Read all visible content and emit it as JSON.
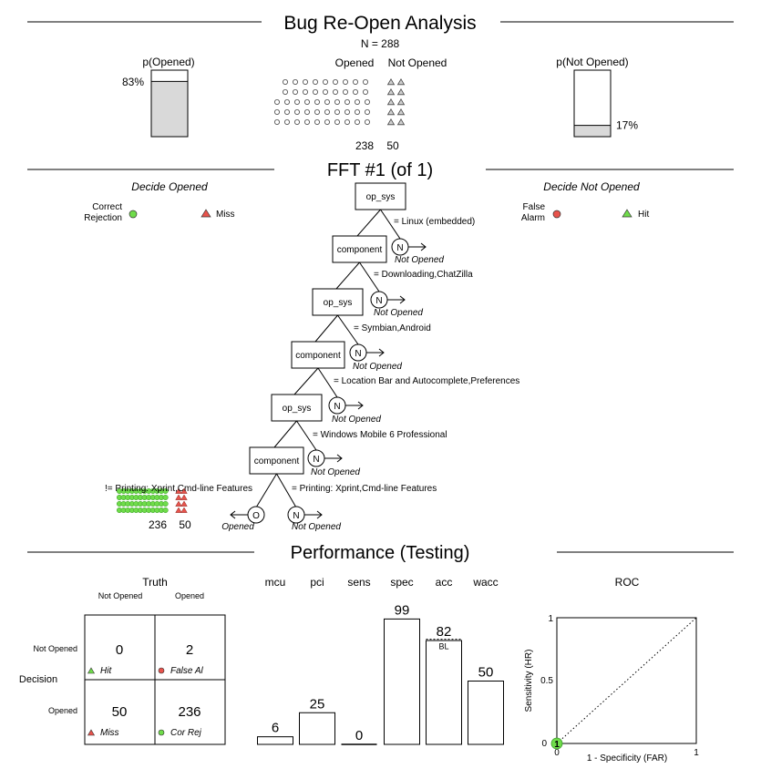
{
  "header": {
    "title": "Bug Re-Open Analysis",
    "n_label": "N = 288",
    "p_left_label": "p(Opened)",
    "p_left_value": "83%",
    "p_left_fraction": 0.83,
    "p_right_label": "p(Not Opened)",
    "p_right_value": "17%",
    "p_right_fraction": 0.17,
    "col_opened": "Opened",
    "col_not_opened": "Not Opened",
    "count_opened": "238",
    "count_not_opened": "50"
  },
  "fft": {
    "title": "FFT #1 (of 1)",
    "left_heading": "Decide Opened",
    "right_heading": "Decide Not Opened",
    "legend": {
      "correct_rejection_1": "Correct",
      "correct_rejection_2": "Rejection",
      "miss": "Miss",
      "false_alarm_1": "False",
      "false_alarm_2": "Alarm",
      "hit": "Hit"
    },
    "nodes": [
      {
        "cue": "op_sys",
        "condition": "= Linux (embedded)",
        "exit_letter": "N",
        "exit_label": "Not Opened"
      },
      {
        "cue": "component",
        "condition": "= Downloading,ChatZilla",
        "exit_letter": "N",
        "exit_label": "Not Opened"
      },
      {
        "cue": "op_sys",
        "condition": "= Symbian,Android",
        "exit_letter": "N",
        "exit_label": "Not Opened"
      },
      {
        "cue": "component",
        "condition": "= Location Bar and Autocomplete,Preferences",
        "exit_letter": "N",
        "exit_label": "Not Opened"
      },
      {
        "cue": "op_sys",
        "condition": "= Windows Mobile 6 Professional",
        "exit_letter": "N",
        "exit_label": "Not Opened"
      },
      {
        "cue": "component",
        "condition": "= Printing: Xprint,Cmd-line Features",
        "exit_letter": "N",
        "exit_label": "Not Opened"
      }
    ],
    "final_left_condition": "!= Printing: Xprint,Cmd-line Features",
    "final_left_letter": "O",
    "final_left_label": "Opened",
    "final_left_count_cr": "236",
    "final_left_count_miss": "50"
  },
  "performance": {
    "title": "Performance (Testing)",
    "truth_label": "Truth",
    "truth_col_1": "Not Opened",
    "truth_col_2": "Opened",
    "decision_label": "Decision",
    "row_1": "Not Opened",
    "row_2": "Opened",
    "cells": {
      "hit": {
        "value": "0",
        "label": "Hit"
      },
      "false_alarm": {
        "value": "2",
        "label": "False Al"
      },
      "miss": {
        "value": "50",
        "label": "Miss"
      },
      "cor_rej": {
        "value": "236",
        "label": "Cor Rej"
      }
    },
    "roc": {
      "title": "ROC",
      "xlabel": "1 - Specificity (FAR)",
      "ylabel": "Sensitivity (HR)",
      "tick_0": "0",
      "tick_half": "0.5",
      "tick_1": "1",
      "point_label": "1",
      "point": {
        "far": 0.0,
        "hr": 0.0
      }
    },
    "colors": {
      "green": "#6fdc4a",
      "red": "#e8534c",
      "gray": "#d9d9d9"
    }
  },
  "chart_data": {
    "type": "bar",
    "categories": [
      "mcu",
      "pci",
      "sens",
      "spec",
      "acc",
      "wacc"
    ],
    "values": [
      6,
      25,
      0,
      99,
      82,
      50
    ],
    "value_labels": [
      "6",
      "25",
      "0",
      "99",
      "82",
      "50"
    ],
    "baseline_label": "BL",
    "baseline_value": 83,
    "ylim": [
      0,
      100
    ]
  }
}
